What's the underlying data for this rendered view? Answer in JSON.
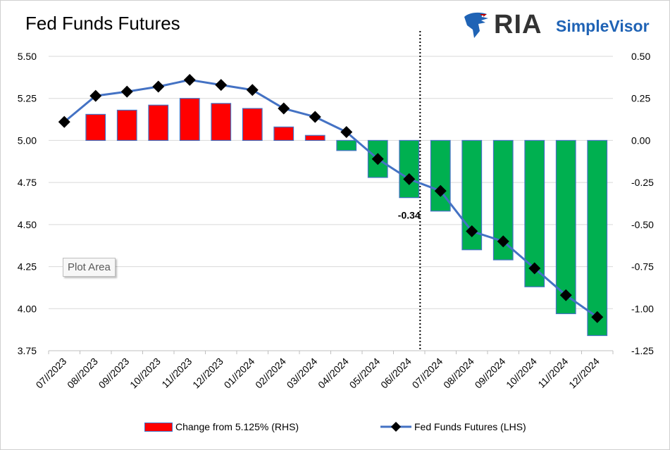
{
  "title": "Fed Funds Futures",
  "logo": {
    "brand": "RIA",
    "product": "SimpleVisor"
  },
  "tooltip": "Plot Area",
  "annotation": "-0.34",
  "colors": {
    "positive": "#ff0000",
    "negative": "#00b050",
    "bar_border": "#4472c4",
    "line": "#4472c4",
    "marker": "#000000",
    "grid": "#d9d9d9"
  },
  "legend": {
    "bar_label": "Change from 5.125% (RHS)",
    "line_label": "Fed Funds Futures (LHS)"
  },
  "chart_data": {
    "type": "bar+line",
    "categories": [
      "07//2023",
      "08//2023",
      "09//2023",
      "10//2023",
      "11//2023",
      "12//2023",
      "01//2024",
      "02//2024",
      "03//2024",
      "04//2024",
      "05//2024",
      "06//2024",
      "07//2024",
      "08//2024",
      "09//2024",
      "10//2024",
      "11//2024",
      "12//2024"
    ],
    "series": [
      {
        "name": "Change from 5.125% (RHS)",
        "type": "bar",
        "axis": "right",
        "values": [
          0.0,
          0.155,
          0.18,
          0.21,
          0.25,
          0.22,
          0.19,
          0.08,
          0.03,
          -0.06,
          -0.22,
          -0.34,
          -0.42,
          -0.65,
          -0.71,
          -0.87,
          -1.03,
          -1.16
        ]
      },
      {
        "name": "Fed Funds Futures (LHS)",
        "type": "line",
        "axis": "left",
        "values": [
          5.11,
          5.265,
          5.29,
          5.32,
          5.36,
          5.33,
          5.3,
          5.19,
          5.14,
          5.05,
          4.89,
          4.77,
          4.7,
          4.46,
          4.4,
          4.24,
          4.08,
          3.95
        ]
      }
    ],
    "y_left": {
      "min": 3.75,
      "max": 5.5,
      "ticks": [
        "5.50",
        "5.25",
        "5.00",
        "4.75",
        "4.50",
        "4.25",
        "4.00",
        "3.75"
      ]
    },
    "y_right": {
      "min": -1.25,
      "max": 0.5,
      "ticks": [
        "0.50",
        "0.25",
        "0.00",
        "-0.25",
        "-0.50",
        "-0.75",
        "-1.00",
        "-1.25"
      ]
    },
    "vline_at_category": "06//2024",
    "grid": true,
    "legend_position": "bottom"
  }
}
